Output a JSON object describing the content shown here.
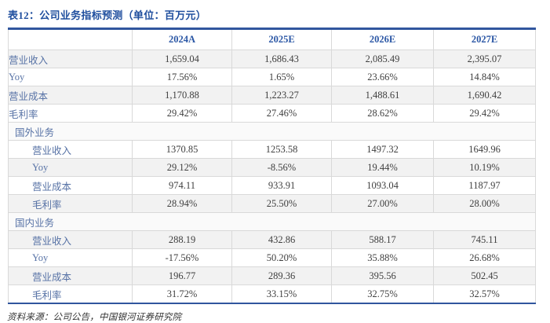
{
  "page": {
    "title": "表12：公司业务指标预测（单位：百万元）",
    "source_note": "资料来源：公司公告，中国银河证券研究院"
  },
  "colors": {
    "title_blue": "#1F4E9E",
    "header_blue": "#2B57A5",
    "label_blue": "#5873A6",
    "value_gray": "#3F3F3F",
    "border_blue": "#31569E",
    "grid_gray": "#D9D9D9",
    "shaded_row_bg": "#F2F2F2",
    "section_row_bg": "#FAFAFA"
  },
  "table": {
    "columns": [
      "",
      "2024A",
      "2025E",
      "2026E",
      "2027E"
    ],
    "rows": [
      {
        "type": "data",
        "indent": 0,
        "shaded": true,
        "label": "营业收入",
        "values": [
          "1,659.04",
          "1,686.43",
          "2,085.49",
          "2,395.07"
        ]
      },
      {
        "type": "data",
        "indent": 0,
        "shaded": false,
        "label": "Yoy",
        "values": [
          "17.56%",
          "1.65%",
          "23.66%",
          "14.84%"
        ]
      },
      {
        "type": "data",
        "indent": 0,
        "shaded": true,
        "label": "营业成本",
        "values": [
          "1,170.88",
          "1,223.27",
          "1,488.61",
          "1,690.42"
        ]
      },
      {
        "type": "data",
        "indent": 0,
        "shaded": false,
        "label": "毛利率",
        "values": [
          "29.42%",
          "27.46%",
          "28.62%",
          "29.42%"
        ]
      },
      {
        "type": "section",
        "label": "国外业务"
      },
      {
        "type": "data",
        "indent": 1,
        "shaded": false,
        "label": "营业收入",
        "values": [
          "1370.85",
          "1253.58",
          "1497.32",
          "1649.96"
        ]
      },
      {
        "type": "data",
        "indent": 1,
        "shaded": true,
        "label": "Yoy",
        "values": [
          "29.12%",
          "-8.56%",
          "19.44%",
          "10.19%"
        ]
      },
      {
        "type": "data",
        "indent": 1,
        "shaded": false,
        "label": "营业成本",
        "values": [
          "974.11",
          "933.91",
          "1093.04",
          "1187.97"
        ]
      },
      {
        "type": "data",
        "indent": 1,
        "shaded": true,
        "label": "毛利率",
        "values": [
          "28.94%",
          "25.50%",
          "27.00%",
          "28.00%"
        ]
      },
      {
        "type": "section",
        "label": "国内业务"
      },
      {
        "type": "data",
        "indent": 1,
        "shaded": true,
        "label": "营业收入",
        "values": [
          "288.19",
          "432.86",
          "588.17",
          "745.11"
        ]
      },
      {
        "type": "data",
        "indent": 1,
        "shaded": false,
        "label": "Yoy",
        "values": [
          "-17.56%",
          "50.20%",
          "35.88%",
          "26.68%"
        ]
      },
      {
        "type": "data",
        "indent": 1,
        "shaded": true,
        "label": "营业成本",
        "values": [
          "196.77",
          "289.36",
          "395.56",
          "502.45"
        ]
      },
      {
        "type": "data",
        "indent": 1,
        "shaded": false,
        "label": "毛利率",
        "values": [
          "31.72%",
          "33.15%",
          "32.75%",
          "32.57%"
        ]
      }
    ]
  }
}
